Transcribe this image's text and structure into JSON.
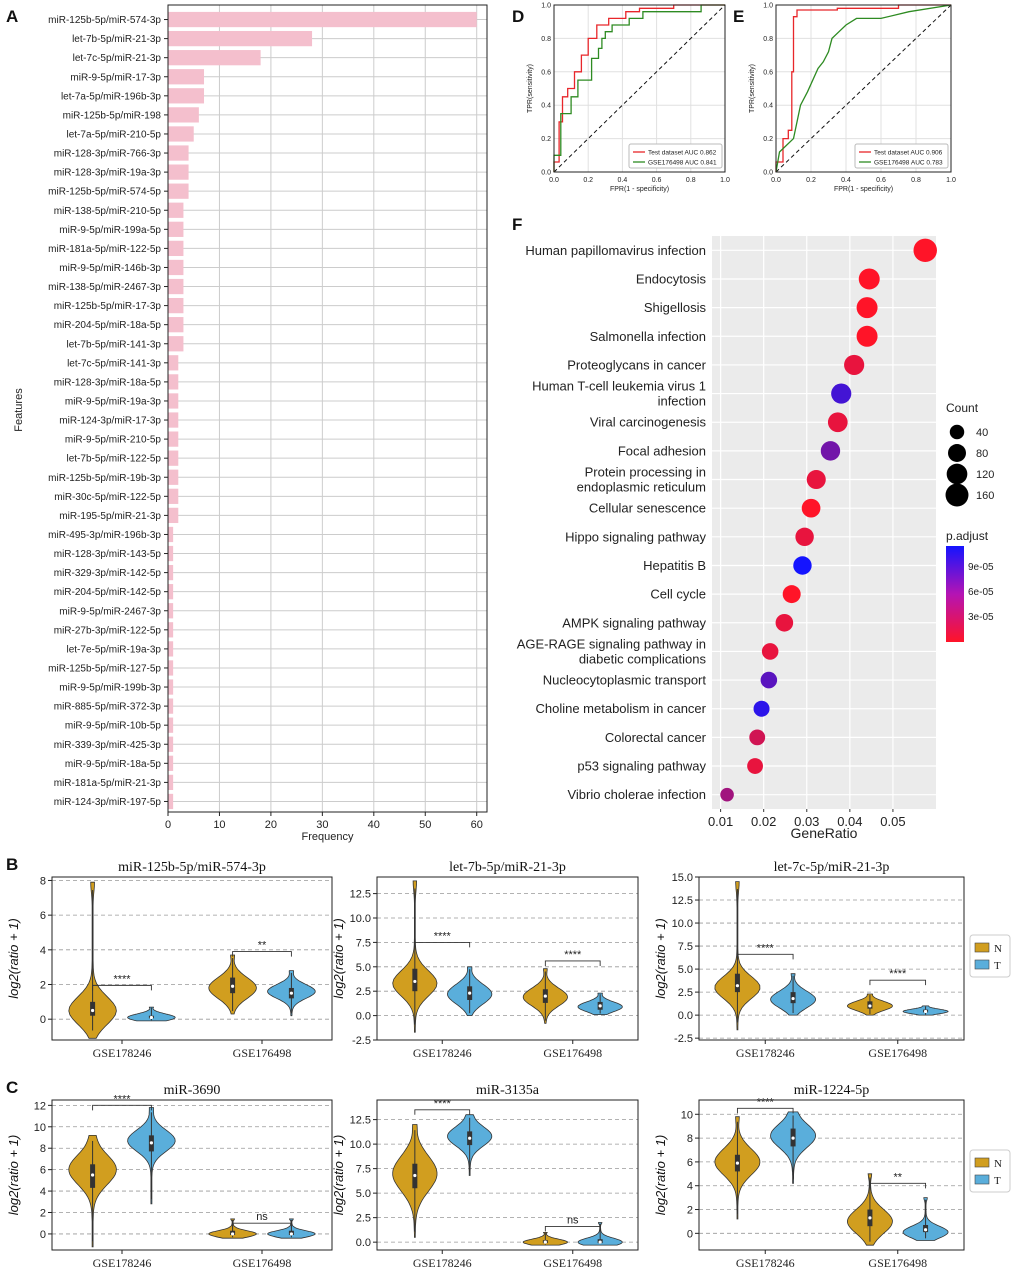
{
  "colors": {
    "bar": "#f4bfcd",
    "grid": "#cccccc",
    "axis": "#222222",
    "red": "#e8262a",
    "green": "#2e8b22",
    "N": "#d19e1f",
    "T": "#5aaedb",
    "padjHigh": "#1414ff",
    "padjLow": "#ff1428",
    "dotsBg": "#ebebeb"
  },
  "panel_labels": [
    "A",
    "B",
    "C",
    "D",
    "E",
    "F"
  ],
  "chart_data": [
    {
      "id": "A",
      "type": "bar",
      "orientation": "horizontal",
      "xlabel": "Frequency",
      "ylabel": "Features",
      "xlim": [
        0,
        62
      ],
      "xticks": [
        0,
        10,
        20,
        30,
        40,
        50,
        60
      ],
      "categories": [
        "miR-125b-5p/miR-574-3p",
        "let-7b-5p/miR-21-3p",
        "let-7c-5p/miR-21-3p",
        "miR-9-5p/miR-17-3p",
        "let-7a-5p/miR-196b-3p",
        "miR-125b-5p/miR-198",
        "let-7a-5p/miR-210-5p",
        "miR-128-3p/miR-766-3p",
        "miR-128-3p/miR-19a-3p",
        "miR-125b-5p/miR-574-5p",
        "miR-138-5p/miR-210-5p",
        "miR-9-5p/miR-199a-5p",
        "miR-181a-5p/miR-122-5p",
        "miR-9-5p/miR-146b-3p",
        "miR-138-5p/miR-2467-3p",
        "miR-125b-5p/miR-17-3p",
        "miR-204-5p/miR-18a-5p",
        "let-7b-5p/miR-141-3p",
        "let-7c-5p/miR-141-3p",
        "miR-128-3p/miR-18a-5p",
        "miR-9-5p/miR-19a-3p",
        "miR-124-3p/miR-17-3p",
        "miR-9-5p/miR-210-5p",
        "let-7b-5p/miR-122-5p",
        "miR-125b-5p/miR-19b-3p",
        "miR-30c-5p/miR-122-5p",
        "miR-195-5p/miR-21-3p",
        "miR-495-3p/miR-196b-3p",
        "miR-128-3p/miR-143-5p",
        "miR-329-3p/miR-142-5p",
        "miR-204-5p/miR-142-5p",
        "miR-9-5p/miR-2467-3p",
        "miR-27b-3p/miR-122-5p",
        "let-7e-5p/miR-19a-3p",
        "miR-125b-5p/miR-127-5p",
        "miR-9-5p/miR-199b-3p",
        "miR-885-5p/miR-372-3p",
        "miR-9-5p/miR-10b-5p",
        "miR-339-3p/miR-425-3p",
        "miR-9-5p/miR-18a-5p",
        "miR-181a-5p/miR-21-3p",
        "miR-124-3p/miR-197-5p"
      ],
      "values": [
        60,
        28,
        18,
        7,
        7,
        6,
        5,
        4,
        4,
        4,
        3,
        3,
        3,
        3,
        3,
        3,
        3,
        3,
        2,
        2,
        2,
        2,
        2,
        2,
        2,
        2,
        2,
        1,
        1,
        1,
        1,
        1,
        1,
        1,
        1,
        1,
        1,
        1,
        1,
        1,
        1,
        1
      ]
    },
    {
      "id": "D",
      "type": "line",
      "xlabel": "FPR(1 - specificity)",
      "ylabel": "TPR(sensitivity)",
      "xlim": [
        0,
        1
      ],
      "ylim": [
        0,
        1
      ],
      "ticks": [
        "0.0",
        "0.2",
        "0.4",
        "0.6",
        "0.8",
        "1.0"
      ],
      "series": [
        {
          "name": "Test dataset AUC 0.862",
          "color": "red",
          "x": [
            0,
            0,
            0.03,
            0.03,
            0.05,
            0.05,
            0.08,
            0.08,
            0.12,
            0.12,
            0.16,
            0.16,
            0.2,
            0.2,
            0.25,
            0.25,
            0.32,
            0.32,
            0.42,
            0.42,
            0.5,
            0.5,
            0.7,
            0.7,
            1
          ],
          "y": [
            0,
            0.06,
            0.06,
            0.3,
            0.3,
            0.45,
            0.45,
            0.5,
            0.5,
            0.6,
            0.6,
            0.7,
            0.7,
            0.8,
            0.8,
            0.88,
            0.88,
            0.92,
            0.92,
            0.96,
            0.96,
            0.98,
            0.98,
            1,
            1
          ]
        },
        {
          "name": "GSE176498 AUC 0.841",
          "color": "green",
          "x": [
            0,
            0,
            0.04,
            0.04,
            0.1,
            0.1,
            0.14,
            0.14,
            0.22,
            0.22,
            0.26,
            0.26,
            0.28,
            0.28,
            0.3,
            0.3,
            0.34,
            0.34,
            0.44,
            0.44,
            0.52,
            0.52,
            0.86,
            0.86,
            1
          ],
          "y": [
            0,
            0.1,
            0.1,
            0.35,
            0.35,
            0.45,
            0.45,
            0.55,
            0.55,
            0.68,
            0.68,
            0.74,
            0.74,
            0.8,
            0.8,
            0.84,
            0.84,
            0.88,
            0.88,
            0.92,
            0.92,
            0.96,
            0.96,
            1,
            1
          ]
        }
      ]
    },
    {
      "id": "E",
      "type": "line",
      "xlabel": "FPR(1 - specificity)",
      "ylabel": "TPR(sensitivity)",
      "xlim": [
        0,
        1
      ],
      "ylim": [
        0,
        1
      ],
      "ticks": [
        "0.0",
        "0.2",
        "0.4",
        "0.6",
        "0.8",
        "1.0"
      ],
      "series": [
        {
          "name": "Test dataset AUC 0.906",
          "color": "red",
          "x": [
            0,
            0,
            0.04,
            0.04,
            0.07,
            0.07,
            0.09,
            0.09,
            0.1,
            0.1,
            0.12,
            0.12,
            0.35,
            0.35,
            0.7,
            0.7,
            1
          ],
          "y": [
            0,
            0.06,
            0.06,
            0.2,
            0.2,
            0.25,
            0.25,
            0.6,
            0.6,
            0.93,
            0.93,
            0.97,
            0.97,
            0.98,
            0.98,
            1,
            1
          ]
        },
        {
          "name": "GSE176498 AUC 0.783",
          "color": "green",
          "x": [
            0,
            0.02,
            0.1,
            0.14,
            0.18,
            0.24,
            0.27,
            0.3,
            0.32,
            0.36,
            0.4,
            0.46,
            0.6,
            0.76,
            1
          ],
          "y": [
            0,
            0.12,
            0.2,
            0.4,
            0.48,
            0.62,
            0.66,
            0.72,
            0.8,
            0.84,
            0.88,
            0.92,
            0.92,
            0.96,
            1
          ]
        }
      ]
    },
    {
      "id": "F",
      "type": "scatter",
      "xlabel": "GeneRatio",
      "xlim": [
        0.008,
        0.06
      ],
      "xticks": [
        0.01,
        0.02,
        0.03,
        0.04,
        0.05
      ],
      "xtick_labels": [
        "0.01",
        "0.02",
        "0.03",
        "0.04",
        "0.05"
      ],
      "size_legend_title": "Count",
      "size_legend": [
        40,
        80,
        120,
        160
      ],
      "color_legend_title": "p.adjust",
      "color_legend_ticks": [
        "9e-05",
        "6e-05",
        "3e-05"
      ],
      "color_range": [
        1e-05,
        0.00011
      ],
      "points": [
        {
          "term": "Human papillomavirus infection",
          "x": 0.0575,
          "count": 170,
          "padj": 1e-05
        },
        {
          "term": "Endocytosis",
          "x": 0.0445,
          "count": 125,
          "padj": 1e-05
        },
        {
          "term": "Shigellosis",
          "x": 0.044,
          "count": 125,
          "padj": 1e-05
        },
        {
          "term": "Salmonella infection",
          "x": 0.044,
          "count": 125,
          "padj": 1e-05
        },
        {
          "term": "Proteoglycans in cancer",
          "x": 0.041,
          "count": 112,
          "padj": 2e-05
        },
        {
          "term": "Human T-cell leukemia virus 1 infection",
          "x": 0.038,
          "count": 112,
          "padj": 9e-05
        },
        {
          "term": "Viral carcinogenesis",
          "x": 0.0372,
          "count": 105,
          "padj": 2e-05
        },
        {
          "term": "Focal adhesion",
          "x": 0.0355,
          "count": 100,
          "padj": 7e-05
        },
        {
          "term": "Protein processing in endoplasmic reticulum",
          "x": 0.0322,
          "count": 95,
          "padj": 2e-05
        },
        {
          "term": "Cellular senescence",
          "x": 0.031,
          "count": 90,
          "padj": 1e-05
        },
        {
          "term": "Hippo signaling pathway",
          "x": 0.0295,
          "count": 86,
          "padj": 2e-05
        },
        {
          "term": "Hepatitis B",
          "x": 0.029,
          "count": 86,
          "padj": 0.00011
        },
        {
          "term": "Cell cycle",
          "x": 0.0265,
          "count": 80,
          "padj": 1e-05
        },
        {
          "term": "AMPK signaling pathway",
          "x": 0.0248,
          "count": 75,
          "padj": 2e-05
        },
        {
          "term": "AGE-RAGE signaling pathway in diabetic complications",
          "x": 0.0215,
          "count": 62,
          "padj": 2e-05
        },
        {
          "term": "Nucleocytoplasmic transport",
          "x": 0.0212,
          "count": 62,
          "padj": 8e-05
        },
        {
          "term": "Choline metabolism in cancer",
          "x": 0.0195,
          "count": 56,
          "padj": 0.0001
        },
        {
          "term": "Colorectal cancer",
          "x": 0.0185,
          "count": 54,
          "padj": 3e-05
        },
        {
          "term": "p53 signaling pathway",
          "x": 0.018,
          "count": 54,
          "padj": 2e-05
        },
        {
          "term": "Vibrio cholerae infection",
          "x": 0.0115,
          "count": 32,
          "padj": 5e-05
        }
      ]
    },
    {
      "id": "B1",
      "type": "violin",
      "title": "miR-125b-5p/miR-574-3p",
      "ylabel": "log2(ratio + 1)",
      "ylim": [
        -1.2,
        8.2
      ],
      "yticks": [
        0,
        2,
        4,
        6,
        8
      ],
      "groups": [
        "GSE178246",
        "GSE176498"
      ],
      "violins": [
        {
          "group": 0,
          "series": "N",
          "median": 0.5,
          "q1": 0.2,
          "q3": 1.0,
          "min": -1.1,
          "max": 7.9,
          "mode": 0.5,
          "spread": 0.8
        },
        {
          "group": 0,
          "series": "T",
          "median": 0.1,
          "q1": 0.05,
          "q3": 0.2,
          "min": -0.1,
          "max": 0.7,
          "mode": 0.1,
          "spread": 0.2
        },
        {
          "group": 1,
          "series": "N",
          "median": 1.9,
          "q1": 1.5,
          "q3": 2.4,
          "min": 0.3,
          "max": 3.7,
          "mode": 1.8,
          "spread": 0.6
        },
        {
          "group": 1,
          "series": "T",
          "median": 1.5,
          "q1": 1.2,
          "q3": 1.8,
          "min": 0.2,
          "max": 2.8,
          "mode": 1.6,
          "spread": 0.4
        }
      ],
      "sig": [
        {
          "group": 0,
          "label": "****",
          "y": 1.95
        },
        {
          "group": 1,
          "label": "**",
          "y": 3.9
        }
      ]
    },
    {
      "id": "B2",
      "type": "violin",
      "title": "let-7b-5p/miR-21-3p",
      "ylabel": "log2(ratio + 1)",
      "ylim": [
        -2.5,
        14.2
      ],
      "yticks": [
        -2.5,
        0,
        2.5,
        5,
        7.5,
        10,
        12.5
      ],
      "ytick_labels": [
        "-2.5",
        "0.0",
        "2.5",
        "5.0",
        "7.5",
        "10.0",
        "12.5"
      ],
      "groups": [
        "GSE178246",
        "GSE176498"
      ],
      "violins": [
        {
          "group": 0,
          "series": "N",
          "median": 3.5,
          "q1": 2.5,
          "q3": 4.8,
          "min": -1.7,
          "max": 13.8,
          "mode": 3.3,
          "spread": 1.3
        },
        {
          "group": 0,
          "series": "T",
          "median": 2.3,
          "q1": 1.6,
          "q3": 3.0,
          "min": 0.0,
          "max": 5.0,
          "mode": 2.2,
          "spread": 1.0
        },
        {
          "group": 1,
          "series": "N",
          "median": 2.0,
          "q1": 1.3,
          "q3": 2.7,
          "min": -0.8,
          "max": 4.8,
          "mode": 1.9,
          "spread": 0.9
        },
        {
          "group": 1,
          "series": "T",
          "median": 1.0,
          "q1": 0.6,
          "q3": 1.4,
          "min": 0.1,
          "max": 2.3,
          "mode": 0.9,
          "spread": 0.5
        }
      ],
      "sig": [
        {
          "group": 0,
          "label": "****",
          "y": 7.5
        },
        {
          "group": 1,
          "label": "****",
          "y": 5.6
        }
      ]
    },
    {
      "id": "B3",
      "type": "violin",
      "title": "let-7c-5p/miR-21-3p",
      "ylabel": "log2(ratio + 1)",
      "ylim": [
        -2.7,
        15
      ],
      "yticks": [
        -2.5,
        0,
        2.5,
        5,
        7.5,
        10,
        12.5,
        15
      ],
      "ytick_labels": [
        "-2.5",
        "0.0",
        "2.5",
        "5.0",
        "7.5",
        "10.0",
        "12.5",
        "15.0"
      ],
      "groups": [
        "GSE178246",
        "GSE176498"
      ],
      "violins": [
        {
          "group": 0,
          "series": "N",
          "median": 3.2,
          "q1": 2.5,
          "q3": 4.5,
          "min": -1.6,
          "max": 14.5,
          "mode": 3.0,
          "spread": 1.2
        },
        {
          "group": 0,
          "series": "T",
          "median": 1.8,
          "q1": 1.3,
          "q3": 2.5,
          "min": 0.0,
          "max": 4.5,
          "mode": 1.7,
          "spread": 0.9
        },
        {
          "group": 1,
          "series": "N",
          "median": 1.0,
          "q1": 0.7,
          "q3": 1.5,
          "min": 0.0,
          "max": 2.3,
          "mode": 1.0,
          "spread": 0.5
        },
        {
          "group": 1,
          "series": "T",
          "median": 0.4,
          "q1": 0.3,
          "q3": 0.6,
          "min": 0.0,
          "max": 1.0,
          "mode": 0.4,
          "spread": 0.25
        }
      ],
      "sig": [
        {
          "group": 0,
          "label": "****",
          "y": 6.6
        },
        {
          "group": 1,
          "label": "****",
          "y": 3.8
        }
      ]
    },
    {
      "id": "C1",
      "type": "violin",
      "title": "miR-3690",
      "ylabel": "log2(ratio + 1)",
      "ylim": [
        -1.5,
        12.5
      ],
      "yticks": [
        0,
        2,
        4,
        6,
        8,
        10,
        12
      ],
      "groups": [
        "GSE178246",
        "GSE176498"
      ],
      "violins": [
        {
          "group": 0,
          "series": "N",
          "median": 5.5,
          "q1": 4.3,
          "q3": 6.5,
          "min": -1.2,
          "max": 9.2,
          "mode": 6.0,
          "spread": 1.4
        },
        {
          "group": 0,
          "series": "T",
          "median": 8.5,
          "q1": 7.7,
          "q3": 9.2,
          "min": 2.8,
          "max": 11.8,
          "mode": 8.7,
          "spread": 1.0
        },
        {
          "group": 1,
          "series": "N",
          "median": 0.0,
          "q1": -0.1,
          "q3": 0.3,
          "min": -0.4,
          "max": 1.4,
          "mode": 0.0,
          "spread": 0.3
        },
        {
          "group": 1,
          "series": "T",
          "median": 0.0,
          "q1": -0.1,
          "q3": 0.3,
          "min": -0.4,
          "max": 1.4,
          "mode": 0.0,
          "spread": 0.3
        }
      ],
      "sig": [
        {
          "group": 0,
          "label": "****",
          "y": 12.0
        },
        {
          "group": 1,
          "label": "ns",
          "y": 1.0
        }
      ]
    },
    {
      "id": "C2",
      "type": "violin",
      "title": "miR-3135a",
      "ylabel": "log2(ratio + 1)",
      "ylim": [
        -0.8,
        14.5
      ],
      "yticks": [
        0,
        2.5,
        5,
        7.5,
        10,
        12.5
      ],
      "ytick_labels": [
        "0.0",
        "2.5",
        "5.0",
        "7.5",
        "10.0",
        "12.5"
      ],
      "groups": [
        "GSE178246",
        "GSE176498"
      ],
      "violins": [
        {
          "group": 0,
          "series": "N",
          "median": 6.8,
          "q1": 5.5,
          "q3": 8.0,
          "min": 0.5,
          "max": 12.0,
          "mode": 7.0,
          "spread": 1.8
        },
        {
          "group": 0,
          "series": "T",
          "median": 10.6,
          "q1": 9.9,
          "q3": 11.3,
          "min": 6.8,
          "max": 13.0,
          "mode": 10.8,
          "spread": 1.0
        },
        {
          "group": 1,
          "series": "N",
          "median": 0.0,
          "q1": -0.1,
          "q3": 0.2,
          "min": -0.3,
          "max": 1.0,
          "mode": 0.0,
          "spread": 0.3
        },
        {
          "group": 1,
          "series": "T",
          "median": 0.0,
          "q1": -0.1,
          "q3": 0.3,
          "min": -0.3,
          "max": 2.0,
          "mode": 0.0,
          "spread": 0.4
        }
      ],
      "sig": [
        {
          "group": 0,
          "label": "****",
          "y": 13.5
        },
        {
          "group": 1,
          "label": "ns",
          "y": 1.6
        }
      ]
    },
    {
      "id": "C3",
      "type": "violin",
      "title": "miR-1224-5p",
      "ylabel": "log2(ratio + 1)",
      "ylim": [
        -1.4,
        11.2
      ],
      "yticks": [
        0,
        2,
        4,
        6,
        8,
        10
      ],
      "groups": [
        "GSE178246",
        "GSE176498"
      ],
      "violins": [
        {
          "group": 0,
          "series": "N",
          "median": 5.9,
          "q1": 5.2,
          "q3": 6.6,
          "min": 1.2,
          "max": 9.8,
          "mode": 6.0,
          "spread": 1.1
        },
        {
          "group": 0,
          "series": "T",
          "median": 8.0,
          "q1": 7.3,
          "q3": 8.8,
          "min": 4.2,
          "max": 10.2,
          "mode": 8.2,
          "spread": 1.0
        },
        {
          "group": 1,
          "series": "N",
          "median": 1.3,
          "q1": 0.6,
          "q3": 2.0,
          "min": -1.0,
          "max": 5.0,
          "mode": 1.0,
          "spread": 1.0
        },
        {
          "group": 1,
          "series": "T",
          "median": 0.3,
          "q1": 0.1,
          "q3": 0.7,
          "min": -0.6,
          "max": 3.0,
          "mode": 0.1,
          "spread": 0.5
        }
      ],
      "sig": [
        {
          "group": 0,
          "label": "****",
          "y": 10.5
        },
        {
          "group": 1,
          "label": "**",
          "y": 4.2
        }
      ]
    }
  ],
  "violin_legend": {
    "items": [
      {
        "label": "N",
        "color": "N"
      },
      {
        "label": "T",
        "color": "T"
      }
    ]
  }
}
